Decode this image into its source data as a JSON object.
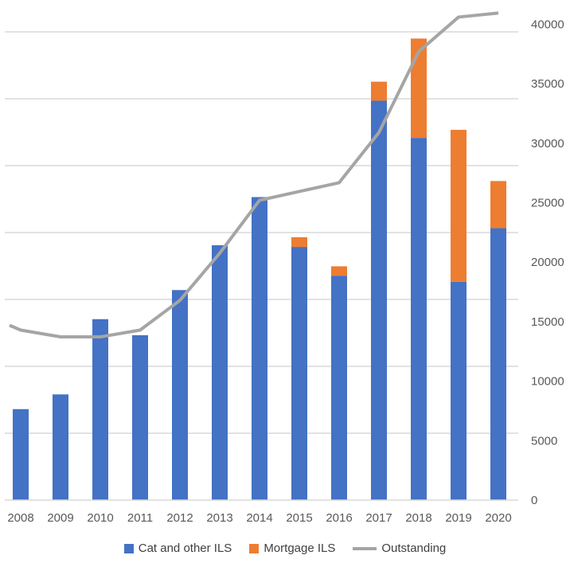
{
  "chart_data": {
    "type": "bar",
    "stacked": true,
    "categories": [
      "2008",
      "2009",
      "2010",
      "2011",
      "2012",
      "2013",
      "2014",
      "2015",
      "2016",
      "2017",
      "2018",
      "2019",
      "2020"
    ],
    "series": [
      {
        "name": "Cat and other ILS",
        "kind": "bar",
        "axis": "left",
        "color": "#4472C4",
        "values": [
          2720,
          3160,
          5410,
          4930,
          6280,
          7620,
          9060,
          7570,
          6710,
          11940,
          10830,
          6530,
          8130
        ]
      },
      {
        "name": "Mortgage ILS",
        "kind": "bar",
        "axis": "left",
        "color": "#ED7D31",
        "values": [
          0,
          0,
          0,
          0,
          0,
          0,
          0,
          290,
          280,
          570,
          2970,
          4540,
          1410
        ]
      },
      {
        "name": "Outstanding",
        "kind": "line",
        "axis": "right",
        "color": "#A5A5A5",
        "values": [
          14290,
          13720,
          13720,
          14290,
          16790,
          20750,
          25200,
          25940,
          26680,
          30900,
          37700,
          40600,
          40940
        ]
      }
    ],
    "left_axis": {
      "ylim": [
        0,
        14000
      ],
      "tick_step": 2000,
      "labels_shown": false
    },
    "right_axis": {
      "ylim": [
        0,
        40000
      ],
      "ticks": [
        "0",
        "5000",
        "10000",
        "15000",
        "20000",
        "25000",
        "30000",
        "35000",
        "40000"
      ]
    },
    "grid": true,
    "legend": "bottom",
    "title": "",
    "xlabel": "",
    "ylabel": ""
  }
}
